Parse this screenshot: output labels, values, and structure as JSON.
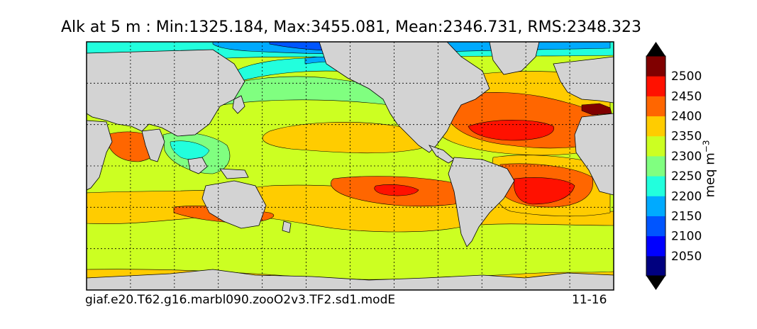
{
  "title": "Alk at 5 m : Min:1325.184, Max:3455.081, Mean:2346.731, RMS:2348.323",
  "footer": {
    "case_name": "giaf.e20.T62.g16.marbl090.zooO2v3.TF2.sd1.modE",
    "years": "11-16"
  },
  "colorbar": {
    "units": "meq m",
    "units_exponent": "−3",
    "levels": [
      2050,
      2100,
      2150,
      2200,
      2250,
      2300,
      2350,
      2400,
      2450,
      2500
    ],
    "colors": [
      "#00007f",
      "#0000ff",
      "#0055ff",
      "#00aaff",
      "#22ffdd",
      "#80ff80",
      "#ccff22",
      "#ffcc00",
      "#ff6600",
      "#ff1100",
      "#800000"
    ]
  },
  "map_colors": {
    "land": "#d3d3d3",
    "ocean_base": "#ccff22",
    "grid": "#000000"
  },
  "chart_data": {
    "type": "heatmap",
    "variable": "Alk",
    "depth": "5 m",
    "stats": {
      "min": 1325.184,
      "max": 3455.081,
      "mean": 2346.731,
      "rms": 2348.323
    },
    "colorbar_ticks": [
      "2050",
      "2100",
      "2150",
      "2200",
      "2250",
      "2300",
      "2350",
      "2400",
      "2450",
      "2500"
    ],
    "grid": true
  }
}
